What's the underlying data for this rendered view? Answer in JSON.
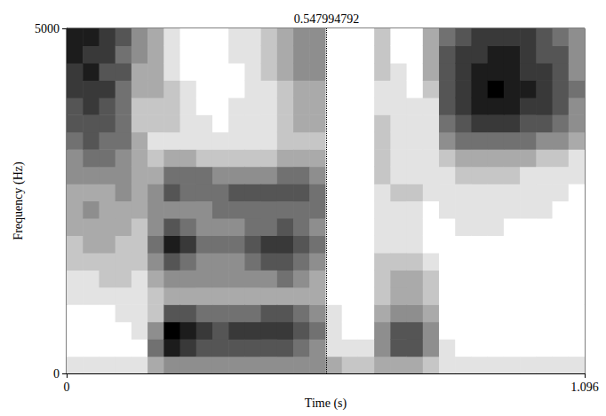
{
  "chart_data": {
    "type": "heatmap",
    "x_label": "Time (s)",
    "y_label": "Frequency (Hz)",
    "xlim": [
      0,
      1.096
    ],
    "xticks": [
      0,
      1.096
    ],
    "ylim": [
      0,
      5000
    ],
    "yticks": [
      0,
      5000
    ],
    "grid": false,
    "color": "#000000",
    "cursor": {
      "value": 0.547994792,
      "label": "0.547994792"
    },
    "zlim": [
      0,
      9
    ],
    "time_bins": [
      0,
      0.03425,
      0.0685,
      0.10275,
      0.137,
      0.17125,
      0.2055,
      0.23975,
      0.274,
      0.30825,
      0.3425,
      0.37675,
      0.411,
      0.44525,
      0.4795,
      0.51375,
      0.548,
      0.58225,
      0.6165,
      0.65075,
      0.685,
      0.71925,
      0.7535,
      0.78775,
      0.822,
      0.85625,
      0.8905,
      0.92475,
      0.959,
      0.99325,
      1.0275,
      1.06175,
      1.096
    ],
    "freq_bins": [
      0,
      250,
      500,
      750,
      1000,
      1250,
      1500,
      1750,
      2000,
      2250,
      2500,
      2750,
      3000,
      3250,
      3500,
      3750,
      4000,
      4250,
      4500,
      4750,
      5000
    ],
    "intensity": [
      [
        1,
        0,
        0,
        0,
        1,
        1,
        2,
        2,
        3,
        3,
        3,
        4,
        4,
        5,
        6,
        6,
        7,
        7,
        8,
        8
      ],
      [
        1,
        0,
        0,
        0,
        1,
        1,
        2,
        3,
        3,
        4,
        3,
        4,
        5,
        6,
        6,
        7,
        7,
        8,
        7,
        8
      ],
      [
        1,
        0,
        0,
        0,
        1,
        2,
        2,
        3,
        3,
        3,
        3,
        4,
        5,
        5,
        6,
        6,
        7,
        6,
        7,
        7
      ],
      [
        1,
        0,
        0,
        1,
        1,
        2,
        2,
        2,
        3,
        3,
        4,
        4,
        4,
        5,
        5,
        5,
        5,
        6,
        5,
        6
      ],
      [
        1,
        0,
        1,
        1,
        1,
        1,
        2,
        2,
        2,
        3,
        3,
        3,
        3,
        3,
        2,
        2,
        3,
        3,
        4,
        4
      ],
      [
        3,
        5,
        4,
        2,
        2,
        3,
        4,
        5,
        4,
        4,
        4,
        3,
        2,
        1,
        2,
        2,
        3,
        3,
        3,
        3
      ],
      [
        4,
        8,
        9,
        6,
        3,
        4,
        6,
        8,
        6,
        4,
        6,
        5,
        3,
        1,
        2,
        2,
        2,
        1,
        1,
        1
      ],
      [
        4,
        7,
        8,
        6,
        3,
        4,
        5,
        7,
        5,
        4,
        5,
        5,
        3,
        1,
        1,
        1,
        1,
        0,
        0,
        0
      ],
      [
        4,
        6,
        7,
        5,
        3,
        4,
        4,
        5,
        4,
        4,
        5,
        5,
        2,
        1,
        1,
        0,
        0,
        0,
        0,
        0
      ],
      [
        4,
        6,
        6,
        5,
        3,
        4,
        4,
        5,
        4,
        5,
        5,
        4,
        2,
        1,
        0,
        0,
        0,
        0,
        0,
        0
      ],
      [
        4,
        6,
        7,
        5,
        3,
        4,
        4,
        5,
        4,
        5,
        6,
        4,
        2,
        1,
        1,
        1,
        0,
        0,
        1,
        1
      ],
      [
        4,
        6,
        7,
        5,
        3,
        4,
        5,
        6,
        5,
        5,
        6,
        4,
        2,
        1,
        1,
        1,
        1,
        1,
        1,
        1
      ],
      [
        4,
        6,
        7,
        6,
        3,
        4,
        6,
        7,
        5,
        5,
        6,
        4,
        2,
        1,
        1,
        1,
        1,
        2,
        2,
        2
      ],
      [
        4,
        6,
        7,
        6,
        3,
        5,
        6,
        7,
        6,
        5,
        6,
        5,
        3,
        2,
        2,
        2,
        2,
        3,
        3,
        3
      ],
      [
        4,
        5,
        6,
        5,
        3,
        4,
        5,
        6,
        5,
        5,
        6,
        5,
        3,
        2,
        3,
        3,
        3,
        4,
        4,
        4
      ],
      [
        4,
        4,
        5,
        4,
        3,
        3,
        4,
        5,
        4,
        5,
        5,
        4,
        3,
        2,
        3,
        3,
        3,
        4,
        4,
        4
      ],
      [
        3,
        1,
        1,
        1,
        0,
        0,
        0,
        0,
        0,
        0,
        0,
        0,
        0,
        0,
        0,
        0,
        0,
        0,
        0,
        0
      ],
      [
        2,
        1,
        0,
        0,
        0,
        0,
        0,
        0,
        0,
        0,
        0,
        0,
        0,
        0,
        0,
        0,
        0,
        0,
        0,
        0
      ],
      [
        2,
        1,
        0,
        0,
        0,
        0,
        0,
        0,
        0,
        0,
        0,
        0,
        0,
        0,
        0,
        0,
        0,
        0,
        0,
        0
      ],
      [
        3,
        4,
        4,
        3,
        2,
        2,
        2,
        1,
        1,
        1,
        1,
        2,
        2,
        2,
        2,
        1,
        1,
        2,
        2,
        2
      ],
      [
        3,
        6,
        6,
        4,
        3,
        3,
        2,
        1,
        1,
        1,
        2,
        1,
        1,
        1,
        1,
        1,
        1,
        1,
        0,
        0
      ],
      [
        3,
        6,
        6,
        4,
        3,
        3,
        2,
        1,
        1,
        1,
        2,
        1,
        1,
        1,
        1,
        1,
        0,
        0,
        0,
        0
      ],
      [
        2,
        4,
        4,
        3,
        2,
        2,
        1,
        0,
        0,
        0,
        1,
        1,
        1,
        1,
        1,
        1,
        2,
        3,
        3,
        3
      ],
      [
        1,
        1,
        0,
        0,
        0,
        0,
        0,
        0,
        0,
        1,
        1,
        1,
        2,
        4,
        5,
        6,
        6,
        6,
        6,
        5
      ],
      [
        1,
        0,
        0,
        0,
        0,
        0,
        0,
        0,
        1,
        1,
        1,
        2,
        3,
        5,
        6,
        7,
        7,
        7,
        7,
        6
      ],
      [
        1,
        0,
        0,
        0,
        0,
        0,
        0,
        0,
        1,
        1,
        1,
        2,
        3,
        5,
        7,
        8,
        8,
        8,
        7,
        7
      ],
      [
        1,
        0,
        0,
        0,
        0,
        0,
        0,
        0,
        1,
        1,
        1,
        2,
        3,
        5,
        7,
        8,
        9,
        8,
        8,
        7
      ],
      [
        1,
        0,
        0,
        0,
        0,
        0,
        0,
        0,
        0,
        1,
        1,
        2,
        3,
        5,
        7,
        8,
        8,
        8,
        8,
        7
      ],
      [
        1,
        0,
        0,
        0,
        0,
        0,
        0,
        0,
        0,
        1,
        1,
        1,
        3,
        5,
        6,
        7,
        8,
        7,
        7,
        7
      ],
      [
        1,
        0,
        0,
        0,
        0,
        0,
        0,
        0,
        0,
        1,
        1,
        1,
        2,
        4,
        6,
        7,
        7,
        7,
        6,
        6
      ],
      [
        1,
        0,
        0,
        0,
        0,
        0,
        0,
        0,
        0,
        0,
        1,
        1,
        2,
        4,
        5,
        6,
        6,
        6,
        6,
        5
      ],
      [
        1,
        0,
        0,
        0,
        0,
        0,
        0,
        0,
        0,
        0,
        0,
        1,
        1,
        3,
        4,
        4,
        5,
        4,
        4,
        4
      ]
    ]
  }
}
